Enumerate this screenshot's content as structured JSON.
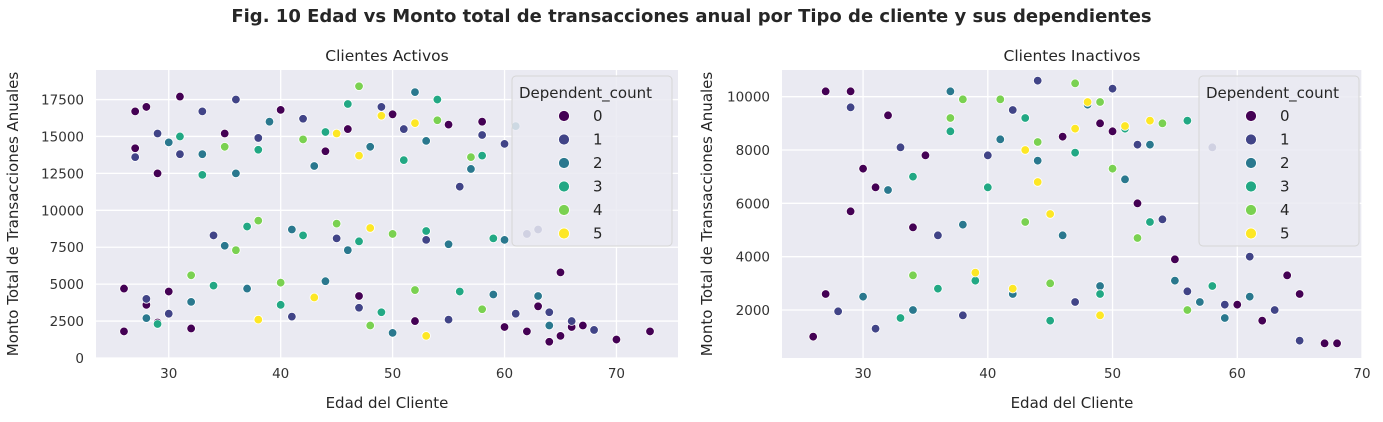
{
  "figure": {
    "title": "Fig. 10 Edad vs Monto total de transacciones anual por Tipo de cliente y sus dependientes"
  },
  "chart_data": [
    {
      "type": "scatter",
      "title": "Clientes Activos",
      "xlabel": "Edad del Cliente",
      "ylabel": "Monto Total de Transacciones Anuales",
      "xlim": [
        23.5,
        75.5
      ],
      "ylim": [
        0,
        19500
      ],
      "xticks": [
        30,
        40,
        50,
        60,
        70
      ],
      "yticks": [
        0,
        2500,
        5000,
        7500,
        10000,
        12500,
        15000,
        17500
      ],
      "grid": true,
      "legend": {
        "title": "Dependent_count",
        "placement": "top-right",
        "entries": [
          "0",
          "1",
          "2",
          "3",
          "4",
          "5"
        ]
      },
      "series": [
        {
          "name": "0",
          "color": "#440154",
          "points": [
            [
              26,
              1800
            ],
            [
              26,
              4700
            ],
            [
              27,
              14200
            ],
            [
              27,
              16700
            ],
            [
              28,
              3600
            ],
            [
              28,
              17000
            ],
            [
              29,
              12500
            ],
            [
              29,
              2400
            ],
            [
              30,
              4500
            ],
            [
              31,
              17700
            ],
            [
              32,
              2000
            ],
            [
              35,
              15200
            ],
            [
              40,
              16800
            ],
            [
              44,
              14000
            ],
            [
              46,
              15500
            ],
            [
              47,
              4200
            ],
            [
              50,
              16500
            ],
            [
              52,
              2500
            ],
            [
              55,
              15800
            ],
            [
              58,
              16000
            ],
            [
              60,
              2100
            ],
            [
              62,
              1800
            ],
            [
              63,
              3500
            ],
            [
              64,
              1100
            ],
            [
              65,
              5800
            ],
            [
              65,
              1500
            ],
            [
              66,
              2100
            ],
            [
              67,
              2200
            ],
            [
              70,
              1250
            ],
            [
              73,
              1800
            ]
          ]
        },
        {
          "name": "1",
          "color": "#414487",
          "points": [
            [
              27,
              13600
            ],
            [
              28,
              4000
            ],
            [
              29,
              15200
            ],
            [
              30,
              3000
            ],
            [
              31,
              13800
            ],
            [
              33,
              16700
            ],
            [
              34,
              8300
            ],
            [
              36,
              17500
            ],
            [
              38,
              14900
            ],
            [
              41,
              2800
            ],
            [
              42,
              16200
            ],
            [
              45,
              8100
            ],
            [
              47,
              3400
            ],
            [
              49,
              17000
            ],
            [
              51,
              15500
            ],
            [
              53,
              8000
            ],
            [
              55,
              2600
            ],
            [
              56,
              11600
            ],
            [
              58,
              15100
            ],
            [
              60,
              14500
            ],
            [
              61,
              3000
            ],
            [
              62,
              8400
            ],
            [
              63,
              8700
            ],
            [
              64,
              3100
            ],
            [
              66,
              2500
            ],
            [
              68,
              1900
            ]
          ]
        },
        {
          "name": "2",
          "color": "#2a788e",
          "points": [
            [
              28,
              2700
            ],
            [
              30,
              14600
            ],
            [
              32,
              3800
            ],
            [
              33,
              13800
            ],
            [
              35,
              7600
            ],
            [
              36,
              12500
            ],
            [
              37,
              4700
            ],
            [
              39,
              16000
            ],
            [
              41,
              8700
            ],
            [
              43,
              13000
            ],
            [
              44,
              5200
            ],
            [
              46,
              7300
            ],
            [
              48,
              14300
            ],
            [
              50,
              1700
            ],
            [
              52,
              18000
            ],
            [
              53,
              14700
            ],
            [
              55,
              7700
            ],
            [
              57,
              12800
            ],
            [
              59,
              4300
            ],
            [
              60,
              8000
            ],
            [
              61,
              15700
            ],
            [
              63,
              4200
            ],
            [
              64,
              2200
            ]
          ]
        },
        {
          "name": "3",
          "color": "#22a884",
          "points": [
            [
              29,
              2300
            ],
            [
              31,
              15000
            ],
            [
              33,
              12400
            ],
            [
              34,
              4900
            ],
            [
              37,
              8900
            ],
            [
              38,
              14100
            ],
            [
              40,
              3600
            ],
            [
              42,
              8300
            ],
            [
              44,
              15300
            ],
            [
              46,
              17200
            ],
            [
              47,
              7900
            ],
            [
              49,
              3100
            ],
            [
              51,
              13400
            ],
            [
              53,
              8600
            ],
            [
              54,
              17500
            ],
            [
              56,
              4500
            ],
            [
              58,
              13700
            ],
            [
              59,
              8100
            ]
          ]
        },
        {
          "name": "4",
          "color": "#7ad151",
          "points": [
            [
              32,
              5600
            ],
            [
              35,
              14300
            ],
            [
              36,
              7300
            ],
            [
              38,
              9300
            ],
            [
              40,
              5100
            ],
            [
              42,
              14800
            ],
            [
              45,
              9100
            ],
            [
              47,
              18400
            ],
            [
              48,
              2200
            ],
            [
              50,
              8400
            ],
            [
              52,
              4600
            ],
            [
              54,
              16100
            ],
            [
              57,
              13600
            ],
            [
              58,
              3300
            ]
          ]
        },
        {
          "name": "5",
          "color": "#fde725",
          "points": [
            [
              38,
              2600
            ],
            [
              43,
              4100
            ],
            [
              45,
              15200
            ],
            [
              47,
              13700
            ],
            [
              48,
              8800
            ],
            [
              49,
              16400
            ],
            [
              52,
              15900
            ],
            [
              53,
              1500
            ]
          ]
        }
      ]
    },
    {
      "type": "scatter",
      "title": "Clientes Inactivos",
      "xlabel": "Edad del Cliente",
      "ylabel": "Monto Total de Transacciones Anuales",
      "xlim": [
        23.5,
        70
      ],
      "ylim": [
        200,
        11000
      ],
      "xticks": [
        30,
        40,
        50,
        60,
        70
      ],
      "yticks": [
        2000,
        4000,
        6000,
        8000,
        10000
      ],
      "grid": true,
      "legend": {
        "title": "Dependent_count",
        "placement": "top-right",
        "entries": [
          "0",
          "1",
          "2",
          "3",
          "4",
          "5"
        ]
      },
      "series": [
        {
          "name": "0",
          "color": "#440154",
          "points": [
            [
              26,
              1000
            ],
            [
              27,
              10200
            ],
            [
              27,
              2600
            ],
            [
              29,
              10200
            ],
            [
              29,
              5700
            ],
            [
              30,
              7300
            ],
            [
              31,
              6600
            ],
            [
              32,
              9300
            ],
            [
              34,
              5100
            ],
            [
              35,
              7800
            ],
            [
              46,
              8500
            ],
            [
              49,
              9000
            ],
            [
              50,
              8700
            ],
            [
              52,
              6000
            ],
            [
              55,
              3900
            ],
            [
              60,
              2200
            ],
            [
              62,
              1600
            ],
            [
              64,
              3300
            ],
            [
              65,
              2600
            ],
            [
              67,
              750
            ],
            [
              68,
              750
            ]
          ]
        },
        {
          "name": "1",
          "color": "#414487",
          "points": [
            [
              28,
              1950
            ],
            [
              29,
              9600
            ],
            [
              31,
              1300
            ],
            [
              33,
              8100
            ],
            [
              36,
              4800
            ],
            [
              38,
              1800
            ],
            [
              40,
              7800
            ],
            [
              42,
              9500
            ],
            [
              44,
              10600
            ],
            [
              47,
              2300
            ],
            [
              50,
              10300
            ],
            [
              52,
              8200
            ],
            [
              54,
              5400
            ],
            [
              56,
              2700
            ],
            [
              58,
              8100
            ],
            [
              59,
              2200
            ],
            [
              61,
              4000
            ],
            [
              63,
              2000
            ],
            [
              65,
              850
            ]
          ]
        },
        {
          "name": "2",
          "color": "#2a788e",
          "points": [
            [
              30,
              2500
            ],
            [
              32,
              6500
            ],
            [
              34,
              2000
            ],
            [
              37,
              10200
            ],
            [
              38,
              5200
            ],
            [
              41,
              8400
            ],
            [
              42,
              2600
            ],
            [
              44,
              7600
            ],
            [
              46,
              4800
            ],
            [
              48,
              9700
            ],
            [
              49,
              2900
            ],
            [
              51,
              6900
            ],
            [
              53,
              8200
            ],
            [
              55,
              3100
            ],
            [
              57,
              2300
            ],
            [
              59,
              1700
            ],
            [
              61,
              2500
            ]
          ]
        },
        {
          "name": "3",
          "color": "#22a884",
          "points": [
            [
              33,
              1700
            ],
            [
              34,
              7000
            ],
            [
              36,
              2800
            ],
            [
              37,
              8700
            ],
            [
              39,
              3100
            ],
            [
              40,
              6600
            ],
            [
              43,
              9200
            ],
            [
              45,
              1600
            ],
            [
              47,
              7900
            ],
            [
              49,
              2600
            ],
            [
              51,
              8800
            ],
            [
              53,
              5300
            ],
            [
              56,
              9100
            ],
            [
              58,
              2900
            ]
          ]
        },
        {
          "name": "4",
          "color": "#7ad151",
          "points": [
            [
              34,
              3300
            ],
            [
              37,
              9200
            ],
            [
              38,
              9900
            ],
            [
              41,
              9900
            ],
            [
              43,
              5300
            ],
            [
              44,
              8300
            ],
            [
              45,
              3000
            ],
            [
              47,
              10500
            ],
            [
              49,
              9800
            ],
            [
              50,
              7300
            ],
            [
              52,
              4700
            ],
            [
              54,
              9000
            ],
            [
              56,
              2000
            ]
          ]
        },
        {
          "name": "5",
          "color": "#fde725",
          "points": [
            [
              39,
              3400
            ],
            [
              42,
              2800
            ],
            [
              43,
              8000
            ],
            [
              44,
              6800
            ],
            [
              45,
              5600
            ],
            [
              47,
              8800
            ],
            [
              48,
              9800
            ],
            [
              49,
              1800
            ],
            [
              51,
              8900
            ],
            [
              53,
              9100
            ]
          ]
        }
      ]
    }
  ]
}
